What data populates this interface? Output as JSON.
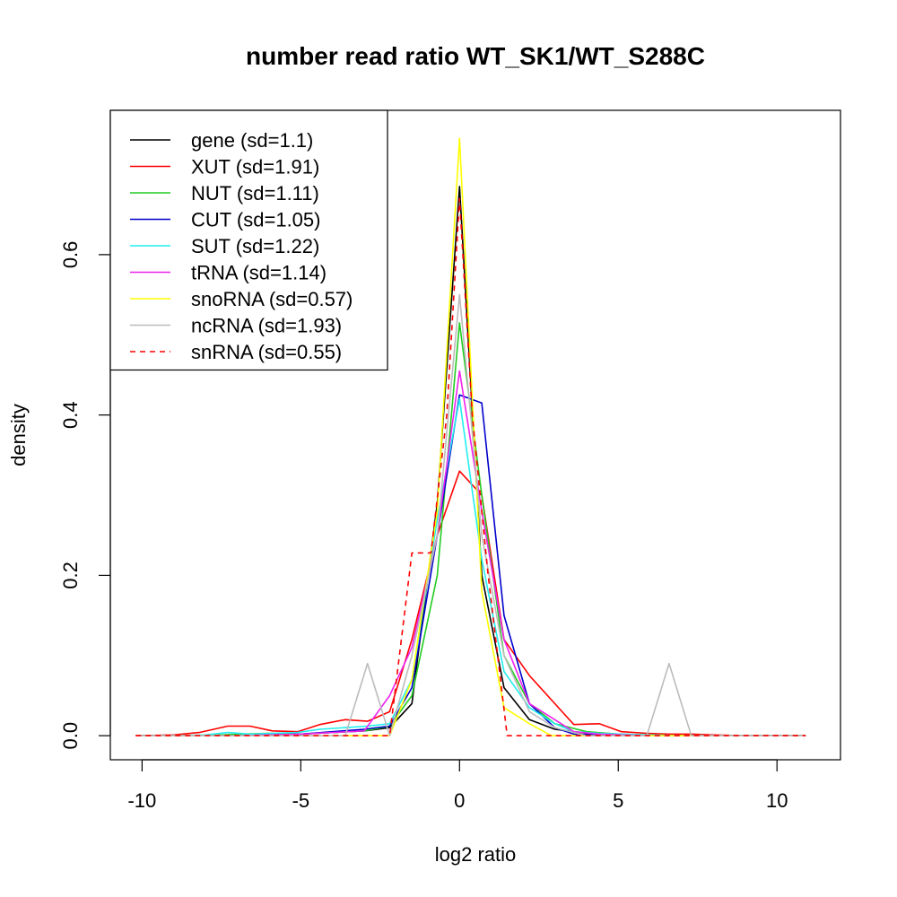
{
  "chart_data": {
    "type": "line",
    "title": "number read ratio WT_SK1/WT_S288C",
    "xlabel": "log2 ratio",
    "ylabel": "density",
    "xlim": [
      -11,
      12
    ],
    "ylim": [
      -0.03,
      0.78
    ],
    "x_ticks": [
      -10,
      -5,
      0,
      5,
      10
    ],
    "x_tick_labels": [
      "-10",
      "-5",
      "0",
      "5",
      "10"
    ],
    "y_ticks": [
      0.0,
      0.2,
      0.4,
      0.6
    ],
    "y_tick_labels": [
      "0.0",
      "0.2",
      "0.4",
      "0.6"
    ],
    "grid": false,
    "legend_position": "top-left",
    "series": [
      {
        "name": "gene (sd=1.1)",
        "color": "#000000",
        "dash": "solid",
        "x": [
          -10.2,
          -9,
          -8,
          -7,
          -6,
          -5,
          -4,
          -3,
          -2.2,
          -1.5,
          -0.7,
          0,
          0.7,
          1.4,
          2.2,
          3,
          4,
          5,
          6,
          7,
          8,
          9,
          10,
          10.9
        ],
        "y": [
          0,
          0,
          0,
          0,
          0,
          0.002,
          0.004,
          0.006,
          0.01,
          0.04,
          0.29,
          0.685,
          0.2,
          0.06,
          0.02,
          0.008,
          0.003,
          0.001,
          0,
          0,
          0,
          0,
          0,
          0
        ]
      },
      {
        "name": "XUT (sd=1.91)",
        "color": "#ff0000",
        "dash": "solid",
        "x": [
          -10.2,
          -9,
          -8.2,
          -7.3,
          -6.6,
          -5.9,
          -5.1,
          -4.4,
          -3.6,
          -2.9,
          -2.2,
          -1.5,
          -0.7,
          0,
          0.7,
          1.4,
          2.2,
          3,
          3.6,
          4.4,
          5.1,
          5.9,
          6.6,
          7.3,
          8,
          9,
          10,
          10.9
        ],
        "y": [
          0,
          0.001,
          0.004,
          0.012,
          0.012,
          0.006,
          0.005,
          0.014,
          0.02,
          0.018,
          0.03,
          0.12,
          0.25,
          0.33,
          0.3,
          0.12,
          0.075,
          0.04,
          0.014,
          0.015,
          0.005,
          0.003,
          0.002,
          0.002,
          0.001,
          0,
          0,
          0
        ]
      },
      {
        "name": "NUT (sd=1.11)",
        "color": "#22cc22",
        "dash": "solid",
        "x": [
          -10.2,
          -9,
          -8,
          -7,
          -6,
          -5,
          -4,
          -3,
          -2.2,
          -1.5,
          -0.7,
          0,
          0.7,
          1.4,
          2.2,
          3,
          4,
          5,
          6,
          7,
          8,
          9,
          10,
          10.9
        ],
        "y": [
          0,
          0,
          0,
          0.002,
          0.003,
          0.002,
          0.004,
          0.006,
          0.012,
          0.05,
          0.2,
          0.515,
          0.3,
          0.1,
          0.04,
          0.015,
          0.005,
          0.002,
          0.001,
          0,
          0,
          0,
          0,
          0
        ]
      },
      {
        "name": "CUT (sd=1.05)",
        "color": "#0000cc",
        "dash": "solid",
        "x": [
          -10.2,
          -9,
          -8,
          -7,
          -6,
          -5,
          -4,
          -3,
          -2.2,
          -1.5,
          -0.7,
          0,
          0.7,
          1.4,
          2.2,
          3,
          3.6,
          4.4,
          5.1,
          6,
          7,
          8,
          9,
          10,
          10.9
        ],
        "y": [
          0,
          0,
          0,
          0,
          0.001,
          0.002,
          0.005,
          0.008,
          0.012,
          0.06,
          0.25,
          0.425,
          0.415,
          0.15,
          0.04,
          0.01,
          0.002,
          0.001,
          0.001,
          0,
          0,
          0,
          0,
          0,
          0
        ]
      },
      {
        "name": "SUT (sd=1.22)",
        "color": "#22eeee",
        "dash": "solid",
        "x": [
          -10.2,
          -9,
          -8,
          -7.3,
          -6.6,
          -5.9,
          -5.1,
          -4.4,
          -3.6,
          -2.9,
          -2.2,
          -1.5,
          -0.7,
          0,
          0.7,
          1.4,
          2.2,
          3,
          3.6,
          4.4,
          5.1,
          6,
          7,
          8,
          9,
          10,
          10.9
        ],
        "y": [
          0,
          0,
          0.001,
          0.004,
          0.002,
          0.003,
          0.004,
          0.008,
          0.01,
          0.012,
          0.015,
          0.07,
          0.27,
          0.42,
          0.22,
          0.08,
          0.035,
          0.015,
          0.005,
          0.003,
          0.002,
          0.001,
          0,
          0,
          0,
          0,
          0
        ]
      },
      {
        "name": "tRNA (sd=1.14)",
        "color": "#ee22ee",
        "dash": "solid",
        "x": [
          -10.2,
          -9,
          -8,
          -7,
          -6,
          -5,
          -4,
          -3,
          -2.2,
          -1.5,
          -0.7,
          0,
          0.7,
          1.4,
          2.2,
          3,
          3.6,
          4.4,
          5.1,
          6,
          7,
          8,
          9,
          10,
          10.9
        ],
        "y": [
          0,
          0,
          0,
          0,
          0.001,
          0.002,
          0.004,
          0.006,
          0.05,
          0.11,
          0.25,
          0.455,
          0.28,
          0.12,
          0.04,
          0.02,
          0.005,
          0.002,
          0.001,
          0,
          0,
          0,
          0,
          0,
          0
        ]
      },
      {
        "name": "snoRNA (sd=0.57)",
        "color": "#ffff00",
        "dash": "solid",
        "x": [
          -10.2,
          -7,
          -5,
          -3,
          -2.2,
          -1.5,
          -0.7,
          0,
          0.7,
          1.4,
          2.2,
          2.9,
          4,
          6,
          8,
          10,
          10.9
        ],
        "y": [
          0,
          0,
          0,
          0,
          0,
          0.07,
          0.28,
          0.745,
          0.18,
          0.035,
          0.015,
          0,
          0,
          0,
          0,
          0,
          0
        ]
      },
      {
        "name": "ncRNA (sd=1.93)",
        "color": "#bbbbbb",
        "dash": "solid",
        "x": [
          -10.2,
          -8,
          -6,
          -4,
          -3.6,
          -2.9,
          -2.2,
          -1.5,
          -0.7,
          0,
          0.7,
          1.4,
          2.2,
          3,
          4,
          5,
          5.9,
          6.6,
          7.3,
          8,
          9,
          10,
          10.9
        ],
        "y": [
          0,
          0,
          0,
          0,
          0,
          0.09,
          0,
          0.1,
          0.25,
          0.55,
          0.25,
          0.1,
          0.03,
          0.01,
          0,
          0,
          0,
          0.09,
          0,
          0,
          0,
          0,
          0
        ]
      },
      {
        "name": "snRNA (sd=0.55)",
        "color": "#ff0000",
        "dash": "dashed",
        "x": [
          -10.2,
          -7,
          -5,
          -3,
          -2.2,
          -1.5,
          -0.9,
          -0.4,
          0,
          0.4,
          0.9,
          1.5,
          2.2,
          4,
          6,
          8,
          10,
          10.9
        ],
        "y": [
          0,
          0,
          0,
          0,
          0,
          0.228,
          0.228,
          0.4,
          0.67,
          0.4,
          0.2,
          0,
          0,
          0,
          0,
          0,
          0,
          0
        ]
      }
    ]
  }
}
